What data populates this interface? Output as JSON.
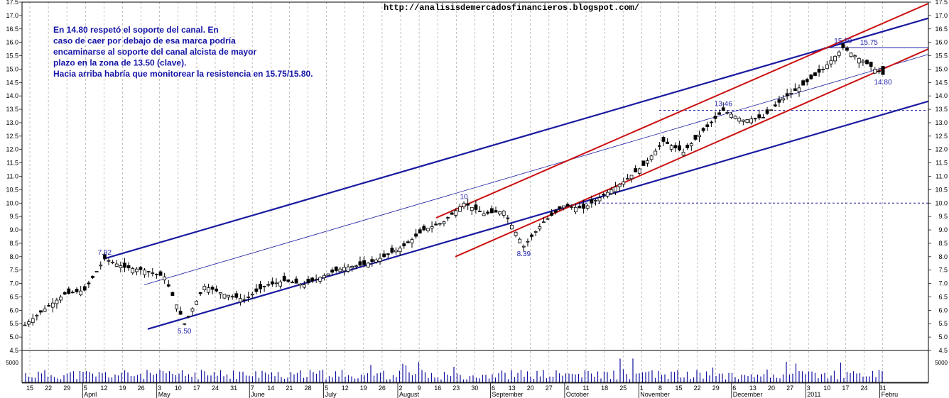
{
  "source_url": "http://analisisdemercadosfinancieros.blogspot.com/",
  "commentary": [
    "En 14.80 respetó el soporte del canal. En",
    "caso de caer por debajo de esa marca podría",
    "encaminarse al soporte del canal alcista de mayor",
    "plazo en la zona de 13.50 (clave).",
    "Hacia arriba habría que monitorear la resistencia en 15.75/15.80."
  ],
  "colors": {
    "channel_long": "#1a1aa0",
    "channel_short": "#cc1010",
    "annotation": "#1f1fb0",
    "grid": "#9a9a9a",
    "candle": "#000000",
    "volume": "#1010a0"
  },
  "chart_data": {
    "type": "candlestick",
    "ylim": [
      4.5,
      17.5
    ],
    "yticks": [
      "4.5",
      "5.0",
      "5.5",
      "6.0",
      "6.5",
      "7.0",
      "7.5",
      "8.0",
      "8.5",
      "9.0",
      "9.5",
      "10.0",
      "10.5",
      "11.0",
      "11.5",
      "12.0",
      "12.5",
      "13.0",
      "13.5",
      "14.0",
      "14.5",
      "15.0",
      "15.5",
      "16.0",
      "16.5",
      "17.0",
      "17.5"
    ],
    "volume_tick": "5000",
    "x_ticks": [
      "15",
      "22",
      "29",
      "5",
      "12",
      "19",
      "26",
      "3",
      "10",
      "17",
      "24",
      "31",
      "7",
      "14",
      "21",
      "28",
      "5",
      "12",
      "19",
      "26",
      "2",
      "9",
      "16",
      "23",
      "30",
      "6",
      "13",
      "20",
      "27",
      "4",
      "11",
      "18",
      "25",
      "1",
      "8",
      "15",
      "22",
      "29",
      "6",
      "13",
      "20",
      "27",
      "3",
      "10",
      "17",
      "24",
      "31"
    ],
    "months": [
      "April",
      "May",
      "June",
      "July",
      "August",
      "September",
      "October",
      "November",
      "December",
      "2011",
      "Febru"
    ],
    "price_series": {
      "name": "close",
      "x": [
        0,
        1,
        2,
        3,
        4,
        5,
        6,
        7,
        8,
        9,
        10,
        11,
        12,
        13,
        14,
        15,
        16,
        17,
        18,
        19,
        20,
        21,
        22,
        23,
        24,
        25,
        26,
        27,
        28,
        29,
        30,
        31,
        32,
        33,
        34,
        35,
        36,
        37,
        38,
        39,
        40,
        41,
        42,
        43
      ],
      "values": [
        5.45,
        6.05,
        6.6,
        6.75,
        7.92,
        7.6,
        7.5,
        7.25,
        5.5,
        6.9,
        6.6,
        6.4,
        6.9,
        7.1,
        6.95,
        7.3,
        7.6,
        7.7,
        8.0,
        8.4,
        9.0,
        9.3,
        10.0,
        9.6,
        9.7,
        8.39,
        9.3,
        9.9,
        9.8,
        10.3,
        10.8,
        11.4,
        12.3,
        11.9,
        12.7,
        13.46,
        13.1,
        13.2,
        13.9,
        14.4,
        15.0,
        15.8,
        15.3,
        14.8
      ]
    },
    "annotations": [
      {
        "label": "7.92",
        "x": 4,
        "y": 7.92
      },
      {
        "label": "5.50",
        "x": 8,
        "y": 5.5
      },
      {
        "label": "10",
        "x": 22,
        "y": 10.0
      },
      {
        "label": "8.39",
        "x": 25,
        "y": 8.39
      },
      {
        "label": "13.46",
        "x": 35,
        "y": 13.46
      },
      {
        "label": "15.80",
        "x": 41,
        "y": 15.8
      },
      {
        "label": "15.75",
        "x": 42.3,
        "y": 15.75
      },
      {
        "label": "14.80",
        "x": 43,
        "y": 14.8
      }
    ],
    "levels": [
      {
        "name": "support-10",
        "value": 10.0
      },
      {
        "name": "support-13.46",
        "value": 13.46
      },
      {
        "name": "resistance-15.80",
        "value": 15.8
      }
    ],
    "grid": true
  }
}
